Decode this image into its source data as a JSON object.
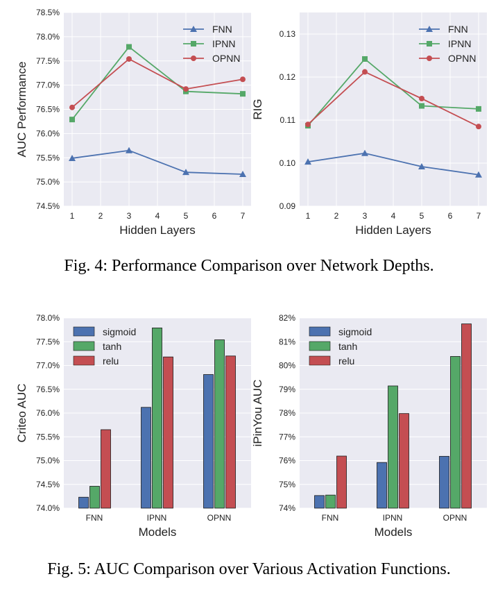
{
  "captions": {
    "fig4": "Fig. 4: Performance Comparison over Network Depths.",
    "fig5": "Fig. 5: AUC Comparison over Various Activation Functions."
  },
  "chart_data": [
    {
      "type": "line",
      "x": [
        1,
        3,
        5,
        7
      ],
      "xticks": [
        1,
        2,
        3,
        4,
        5,
        6,
        7
      ],
      "xlabel": "Hidden Layers",
      "ylabel": "AUC Performance",
      "ylim": [
        74.5,
        78.5
      ],
      "yticks": [
        74.5,
        75.0,
        75.5,
        76.0,
        76.5,
        77.0,
        77.5,
        78.0,
        78.5
      ],
      "ytick_labels": [
        "74.5%",
        "75.0%",
        "75.5%",
        "76.0%",
        "76.5%",
        "77.0%",
        "77.5%",
        "78.0%",
        "78.5%"
      ],
      "grid": true,
      "legend": "top-right",
      "series": [
        {
          "name": "FNN",
          "values": [
            75.49,
            75.65,
            75.2,
            75.16
          ],
          "color": "#4C72B0",
          "marker": "triangle"
        },
        {
          "name": "IPNN",
          "values": [
            76.29,
            77.79,
            76.87,
            76.82
          ],
          "color": "#55A868",
          "marker": "square"
        },
        {
          "name": "OPNN",
          "values": [
            76.54,
            77.54,
            76.92,
            77.12
          ],
          "color": "#C44E52",
          "marker": "circle"
        }
      ]
    },
    {
      "type": "line",
      "x": [
        1,
        3,
        5,
        7
      ],
      "xticks": [
        1,
        2,
        3,
        4,
        5,
        6,
        7
      ],
      "xlabel": "Hidden Layers",
      "ylabel": "RIG",
      "ylim": [
        0.09,
        0.135
      ],
      "yticks": [
        0.09,
        0.1,
        0.11,
        0.12,
        0.13
      ],
      "ytick_labels": [
        "0.09",
        "0.10",
        "0.11",
        "0.12",
        "0.13"
      ],
      "grid": true,
      "legend": "top-right",
      "series": [
        {
          "name": "FNN",
          "values": [
            0.1003,
            0.1023,
            0.0992,
            0.0973
          ],
          "color": "#4C72B0",
          "marker": "triangle"
        },
        {
          "name": "IPNN",
          "values": [
            0.1087,
            0.1242,
            0.1133,
            0.1126
          ],
          "color": "#55A868",
          "marker": "square"
        },
        {
          "name": "OPNN",
          "values": [
            0.109,
            0.1212,
            0.115,
            0.1085
          ],
          "color": "#C44E52",
          "marker": "circle"
        }
      ]
    },
    {
      "type": "bar",
      "categories": [
        "FNN",
        "IPNN",
        "OPNN"
      ],
      "xlabel": "Models",
      "ylabel": "Criteo AUC",
      "ylim": [
        74.0,
        78.0
      ],
      "yticks": [
        74.0,
        74.5,
        75.0,
        75.5,
        76.0,
        76.5,
        77.0,
        77.5,
        78.0
      ],
      "ytick_labels": [
        "74.0%",
        "74.5%",
        "75.0%",
        "75.5%",
        "76.0%",
        "76.5%",
        "77.0%",
        "77.5%",
        "78.0%"
      ],
      "grid": true,
      "legend": "top-left",
      "series": [
        {
          "name": "sigmoid",
          "values": [
            74.23,
            76.12,
            76.81
          ],
          "color": "#4C72B0"
        },
        {
          "name": "tanh",
          "values": [
            74.46,
            77.79,
            77.54
          ],
          "color": "#55A868"
        },
        {
          "name": "relu",
          "values": [
            75.65,
            77.18,
            77.2
          ],
          "color": "#C44E52"
        }
      ]
    },
    {
      "type": "bar",
      "categories": [
        "FNN",
        "IPNN",
        "OPNN"
      ],
      "xlabel": "Models",
      "ylabel": "iPinYou AUC",
      "ylim": [
        74.0,
        82.0
      ],
      "yticks": [
        74,
        75,
        76,
        77,
        78,
        79,
        80,
        81,
        82
      ],
      "ytick_labels": [
        "74%",
        "75%",
        "76%",
        "77%",
        "78%",
        "79%",
        "80%",
        "81%",
        "82%"
      ],
      "grid": true,
      "legend": "top-left",
      "series": [
        {
          "name": "sigmoid",
          "values": [
            74.53,
            75.92,
            76.18
          ],
          "color": "#4C72B0"
        },
        {
          "name": "tanh",
          "values": [
            74.55,
            79.14,
            80.38
          ],
          "color": "#55A868"
        },
        {
          "name": "relu",
          "values": [
            76.19,
            77.98,
            81.75
          ],
          "color": "#C44E52"
        }
      ]
    }
  ]
}
